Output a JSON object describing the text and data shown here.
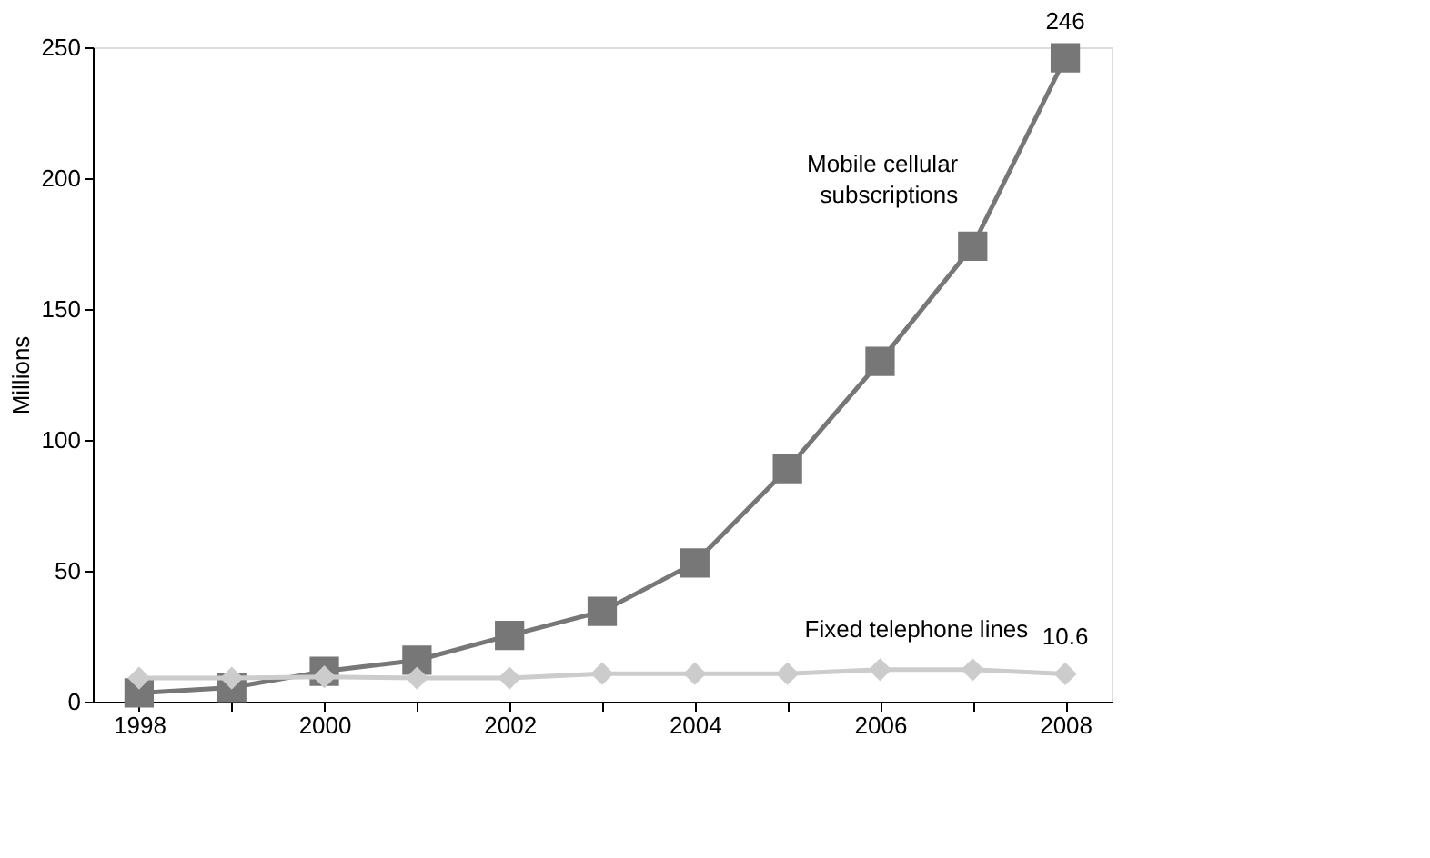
{
  "chart_data": {
    "type": "line",
    "ylabel": "Millions",
    "categories": [
      "1998",
      null,
      "2000",
      null,
      "2002",
      null,
      "2004",
      null,
      "2006",
      null,
      "2008"
    ],
    "ylim": [
      0,
      250
    ],
    "yticks": [
      0,
      50,
      100,
      150,
      200,
      250
    ],
    "grid": false,
    "legend": false,
    "series": [
      {
        "name": "Mobile cellular subscriptions",
        "color": "#777777",
        "marker": "square",
        "values": [
          3.3,
          5.4,
          11.6,
          15.8,
          25.3,
          34.5,
          53,
          89,
          130,
          174,
          246
        ],
        "value_labels": [
          null,
          null,
          null,
          null,
          null,
          null,
          null,
          null,
          null,
          null,
          "246"
        ]
      },
      {
        "name": "Fixed telephone lines",
        "color": "#cccccc",
        "marker": "diamond",
        "values": [
          9,
          9,
          9.5,
          9,
          9,
          10.7,
          10.7,
          10.7,
          12.2,
          12.2,
          10.6
        ],
        "value_labels": [
          null,
          null,
          null,
          null,
          null,
          null,
          null,
          null,
          null,
          null,
          "10.6"
        ]
      }
    ]
  }
}
